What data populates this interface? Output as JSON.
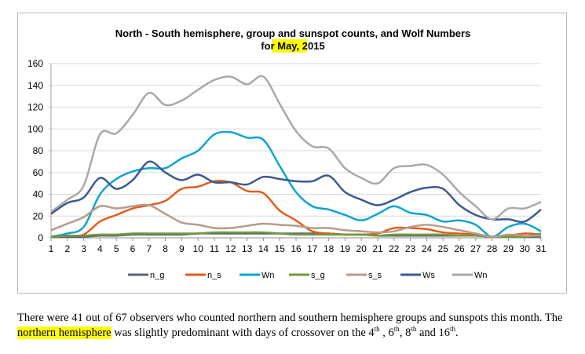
{
  "chart_data": {
    "type": "line",
    "title_line1": "North - South hemisphere, group and sunspot counts, and Wolf Numbers",
    "title_line2_prefix": "fo",
    "title_line2_highlight": "r May,",
    "title_line2_suffix": " 2015",
    "x": [
      1,
      2,
      3,
      4,
      5,
      6,
      7,
      8,
      9,
      10,
      11,
      12,
      13,
      14,
      15,
      16,
      17,
      18,
      19,
      20,
      21,
      22,
      23,
      24,
      25,
      26,
      27,
      28,
      29,
      30,
      31
    ],
    "ylim": [
      0,
      160
    ],
    "yticks": [
      0,
      20,
      40,
      60,
      80,
      100,
      120,
      140,
      160
    ],
    "grid": "horizontal",
    "legend_position": "bottom",
    "series": [
      {
        "name": "n_g",
        "color": "#5b6475",
        "width": 2.5,
        "values": [
          1,
          1,
          1,
          2,
          2,
          3,
          3,
          3,
          3,
          4,
          4,
          4,
          4,
          4,
          4,
          4,
          4,
          4,
          3,
          3,
          2,
          2,
          2,
          2,
          2,
          2,
          2,
          1,
          1,
          1,
          1
        ]
      },
      {
        "name": "n_s",
        "color": "#e35d1b",
        "width": 2.5,
        "values": [
          1,
          2,
          3,
          15,
          21,
          27,
          30,
          34,
          45,
          47,
          52,
          51,
          43,
          41,
          25,
          16,
          6,
          4,
          3,
          3,
          4,
          9,
          9,
          8,
          5,
          4,
          3,
          1,
          2,
          4,
          3
        ]
      },
      {
        "name": "Wn",
        "color": "#0fa3d1",
        "width": 2.5,
        "values": [
          1,
          4,
          10,
          40,
          54,
          61,
          64,
          64,
          73,
          80,
          95,
          97,
          92,
          90,
          66,
          42,
          29,
          26,
          21,
          16,
          22,
          29,
          23,
          21,
          15,
          16,
          12,
          1,
          10,
          13,
          6
        ]
      },
      {
        "name": "s_g",
        "color": "#6f9a3a",
        "width": 2.5,
        "values": [
          1,
          2,
          2,
          3,
          3,
          4,
          4,
          4,
          4,
          4,
          5,
          5,
          5,
          5,
          4,
          3,
          3,
          3,
          3,
          3,
          2,
          3,
          3,
          3,
          3,
          2,
          2,
          1,
          1,
          1,
          4
        ]
      },
      {
        "name": "s_s",
        "color": "#b89c8c",
        "width": 2.5,
        "values": [
          7,
          13,
          19,
          29,
          27,
          29,
          30,
          22,
          14,
          12,
          9,
          9,
          11,
          13,
          12,
          11,
          9,
          9,
          7,
          6,
          5,
          6,
          10,
          12,
          10,
          7,
          4,
          1,
          3,
          2,
          2
        ]
      },
      {
        "name": "Ws",
        "color": "#3d5a8f",
        "width": 2.5,
        "values": [
          22,
          32,
          37,
          55,
          45,
          53,
          70,
          60,
          53,
          58,
          51,
          51,
          49,
          56,
          54,
          52,
          52,
          57,
          42,
          35,
          30,
          35,
          42,
          46,
          45,
          30,
          21,
          17,
          17,
          15,
          26
        ]
      },
      {
        "name": "Wn",
        "color": "#a9a9a9",
        "width": 2.5,
        "values": [
          24,
          35,
          48,
          95,
          96,
          113,
          133,
          122,
          126,
          136,
          145,
          148,
          141,
          148,
          123,
          98,
          84,
          82,
          64,
          55,
          50,
          64,
          66,
          67,
          58,
          42,
          29,
          17,
          27,
          27,
          33
        ]
      }
    ]
  },
  "caption": {
    "part1": "There were 41 out of 67 observers who counted northern and southern hemisphere groups and sunspots this month. The ",
    "highlight": "northern hemisphere",
    "part2": " was slightly predominant with days of crossover on the 4",
    "sup1": "th",
    "sep1": " , 6",
    "sup2": "th",
    "sep2": ", 8",
    "sup3": "th",
    "sep3": " and 16",
    "sup4": "th",
    "end": "."
  }
}
